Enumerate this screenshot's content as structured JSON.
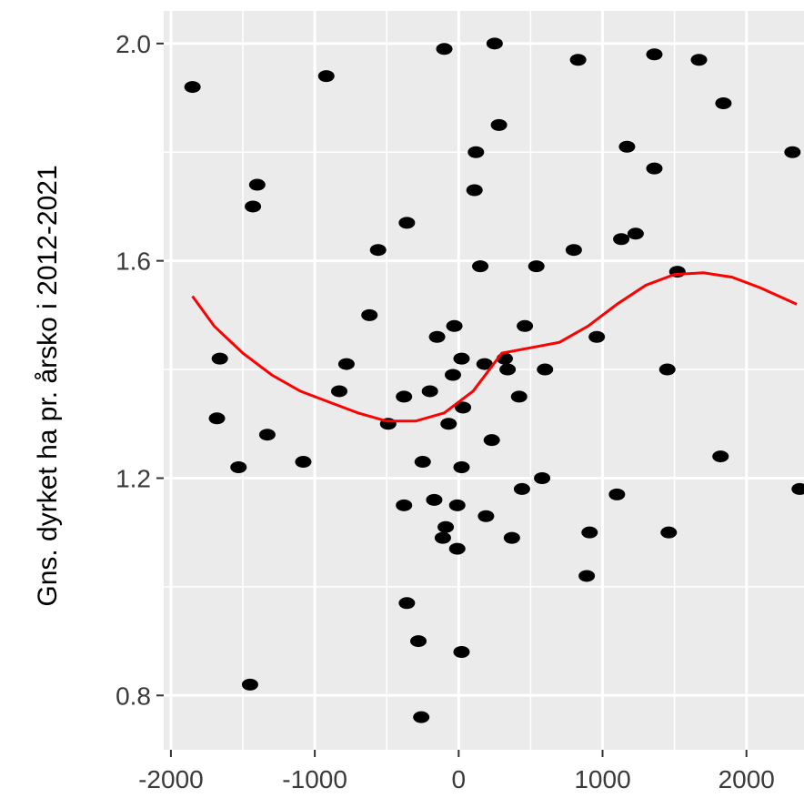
{
  "chart_data": {
    "type": "scatter",
    "title": "",
    "xlabel": "",
    "ylabel": "Gns. dyrket ha pr. årsko i 2012-2021",
    "xlim": [
      -2050,
      2400
    ],
    "ylim": [
      0.7,
      2.06
    ],
    "x_ticks": [
      -2000,
      -1000,
      0,
      1000,
      2000
    ],
    "x_tick_labels": [
      "-2000",
      "-1000",
      "0",
      "1000",
      "2000"
    ],
    "y_ticks": [
      0.8,
      1.2,
      1.6,
      2.0
    ],
    "y_tick_labels": [
      "0.8",
      "1.2",
      "1.6",
      "2.0"
    ],
    "grid": true,
    "background": "#ebebeb",
    "point_color": "#000000",
    "smooth_color": "#ff0000",
    "points": [
      {
        "x": -1850,
        "y": 1.92
      },
      {
        "x": -920,
        "y": 1.94
      },
      {
        "x": -100,
        "y": 1.99
      },
      {
        "x": 250,
        "y": 2.0
      },
      {
        "x": 830,
        "y": 1.97
      },
      {
        "x": 1360,
        "y": 1.98
      },
      {
        "x": 1670,
        "y": 1.97
      },
      {
        "x": 1840,
        "y": 1.89
      },
      {
        "x": 280,
        "y": 1.85
      },
      {
        "x": 1170,
        "y": 1.81
      },
      {
        "x": 2320,
        "y": 1.8
      },
      {
        "x": 120,
        "y": 1.8
      },
      {
        "x": 1360,
        "y": 1.77
      },
      {
        "x": -1400,
        "y": 1.74
      },
      {
        "x": 110,
        "y": 1.73
      },
      {
        "x": -1430,
        "y": 1.7
      },
      {
        "x": -360,
        "y": 1.67
      },
      {
        "x": 1230,
        "y": 1.65
      },
      {
        "x": 1130,
        "y": 1.64
      },
      {
        "x": -560,
        "y": 1.62
      },
      {
        "x": 800,
        "y": 1.62
      },
      {
        "x": 150,
        "y": 1.59
      },
      {
        "x": 540,
        "y": 1.59
      },
      {
        "x": 1520,
        "y": 1.58
      },
      {
        "x": -620,
        "y": 1.5
      },
      {
        "x": -30,
        "y": 1.48
      },
      {
        "x": 460,
        "y": 1.48
      },
      {
        "x": -150,
        "y": 1.46
      },
      {
        "x": 960,
        "y": 1.46
      },
      {
        "x": -1660,
        "y": 1.42
      },
      {
        "x": 20,
        "y": 1.42
      },
      {
        "x": 320,
        "y": 1.42
      },
      {
        "x": -780,
        "y": 1.41
      },
      {
        "x": 180,
        "y": 1.41
      },
      {
        "x": 340,
        "y": 1.4
      },
      {
        "x": 1450,
        "y": 1.4
      },
      {
        "x": 600,
        "y": 1.4
      },
      {
        "x": -40,
        "y": 1.39
      },
      {
        "x": -830,
        "y": 1.36
      },
      {
        "x": -200,
        "y": 1.36
      },
      {
        "x": -380,
        "y": 1.35
      },
      {
        "x": 420,
        "y": 1.35
      },
      {
        "x": 30,
        "y": 1.33
      },
      {
        "x": -1680,
        "y": 1.31
      },
      {
        "x": -490,
        "y": 1.3
      },
      {
        "x": -70,
        "y": 1.3
      },
      {
        "x": -1330,
        "y": 1.28
      },
      {
        "x": 230,
        "y": 1.27
      },
      {
        "x": -1530,
        "y": 1.22
      },
      {
        "x": -1080,
        "y": 1.23
      },
      {
        "x": -250,
        "y": 1.23
      },
      {
        "x": 20,
        "y": 1.22
      },
      {
        "x": 1820,
        "y": 1.24
      },
      {
        "x": 580,
        "y": 1.2
      },
      {
        "x": 440,
        "y": 1.18
      },
      {
        "x": 2370,
        "y": 1.18
      },
      {
        "x": 1100,
        "y": 1.17
      },
      {
        "x": -170,
        "y": 1.16
      },
      {
        "x": -380,
        "y": 1.15
      },
      {
        "x": -10,
        "y": 1.15
      },
      {
        "x": 190,
        "y": 1.13
      },
      {
        "x": -90,
        "y": 1.11
      },
      {
        "x": 910,
        "y": 1.1
      },
      {
        "x": 1460,
        "y": 1.1
      },
      {
        "x": -110,
        "y": 1.09
      },
      {
        "x": 370,
        "y": 1.09
      },
      {
        "x": -10,
        "y": 1.07
      },
      {
        "x": 890,
        "y": 1.02
      },
      {
        "x": -360,
        "y": 0.97
      },
      {
        "x": -280,
        "y": 0.9
      },
      {
        "x": 20,
        "y": 0.88
      },
      {
        "x": -1450,
        "y": 0.82
      },
      {
        "x": -260,
        "y": 0.76
      }
    ],
    "smooth_line": [
      {
        "x": -1850,
        "y": 1.535
      },
      {
        "x": -1700,
        "y": 1.48
      },
      {
        "x": -1500,
        "y": 1.43
      },
      {
        "x": -1300,
        "y": 1.39
      },
      {
        "x": -1100,
        "y": 1.36
      },
      {
        "x": -900,
        "y": 1.34
      },
      {
        "x": -700,
        "y": 1.32
      },
      {
        "x": -500,
        "y": 1.305
      },
      {
        "x": -300,
        "y": 1.305
      },
      {
        "x": -100,
        "y": 1.32
      },
      {
        "x": 100,
        "y": 1.36
      },
      {
        "x": 300,
        "y": 1.43
      },
      {
        "x": 500,
        "y": 1.44
      },
      {
        "x": 700,
        "y": 1.45
      },
      {
        "x": 900,
        "y": 1.48
      },
      {
        "x": 1100,
        "y": 1.52
      },
      {
        "x": 1300,
        "y": 1.555
      },
      {
        "x": 1500,
        "y": 1.575
      },
      {
        "x": 1700,
        "y": 1.578
      },
      {
        "x": 1900,
        "y": 1.57
      },
      {
        "x": 2100,
        "y": 1.55
      },
      {
        "x": 2350,
        "y": 1.52
      }
    ]
  }
}
